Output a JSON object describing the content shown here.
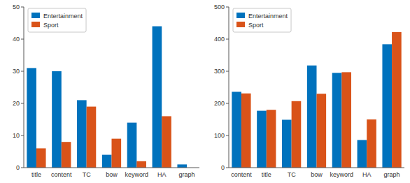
{
  "chart_data": [
    {
      "type": "bar",
      "categories": [
        "title",
        "content",
        "TC",
        "bow",
        "keyword",
        "HA",
        "graph"
      ],
      "series": [
        {
          "name": "Entertainment",
          "color": "#0072BD",
          "values": [
            31,
            30,
            21,
            4,
            14,
            44,
            1
          ]
        },
        {
          "name": "Sport",
          "color": "#D95319",
          "values": [
            6,
            8,
            19,
            9,
            2,
            16,
            0
          ]
        }
      ],
      "ylim": [
        0,
        50
      ],
      "yticks": [
        0,
        10,
        20,
        30,
        40,
        50
      ],
      "legend": "upper left"
    },
    {
      "type": "bar",
      "categories": [
        "content",
        "title",
        "TC",
        "bow",
        "keyword",
        "HA",
        "graph"
      ],
      "series": [
        {
          "name": "Entertainment",
          "color": "#0072BD",
          "values": [
            236,
            177,
            149,
            318,
            295,
            86,
            384
          ]
        },
        {
          "name": "Sport",
          "color": "#D95319",
          "values": [
            231,
            180,
            207,
            230,
            297,
            150,
            422
          ]
        }
      ],
      "ylim": [
        0,
        500
      ],
      "yticks": [
        0,
        100,
        200,
        300,
        400,
        500
      ],
      "legend": "upper left"
    }
  ]
}
